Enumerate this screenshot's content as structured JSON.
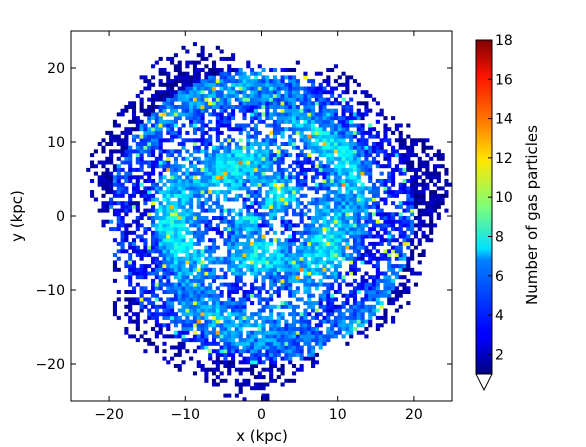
{
  "chart_data": {
    "type": "heatmap",
    "title": "",
    "xlabel": "x (kpc)",
    "ylabel": "y (kpc)",
    "xlim": [
      -25,
      25
    ],
    "ylim": [
      -25,
      25
    ],
    "xticks": [
      -20,
      -10,
      0,
      10,
      20
    ],
    "yticks": [
      20,
      10,
      0,
      -10,
      -20
    ],
    "xtick_labels": [
      "−20",
      "−10",
      "0",
      "10",
      "20"
    ],
    "ytick_labels": [
      "20",
      "10",
      "0",
      "−10",
      "−20"
    ],
    "grid": false,
    "description": "2D histogram of gas particle positions in a disk galaxy of radius ~23 kpc with spiral-arm structure",
    "disk_radius_kpc": 23,
    "colorbar": {
      "label": "Number of gas particles",
      "range": [
        1,
        18
      ],
      "ticks": [
        2,
        4,
        6,
        8,
        10,
        12,
        14,
        16,
        18
      ],
      "tick_labels": [
        "2",
        "4",
        "6",
        "8",
        "10",
        "12",
        "14",
        "16",
        "18"
      ],
      "colormap": "jet",
      "extend": "min"
    }
  }
}
